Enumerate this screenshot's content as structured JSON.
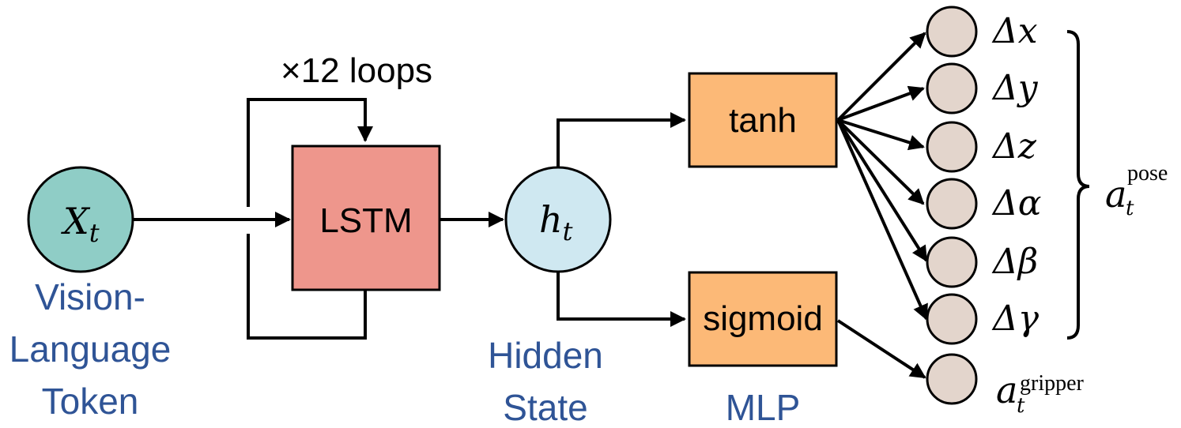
{
  "loop_label": "×12 loops",
  "input": {
    "symbol": "X",
    "subscript": "t",
    "caption_line1": "Vision-",
    "caption_line2": "Language",
    "caption_line3": "Token",
    "fill": "#8fcdc6"
  },
  "lstm": {
    "label": "LSTM",
    "fill": "#ee968c"
  },
  "hidden": {
    "symbol": "h",
    "subscript": "t",
    "caption_line1": "Hidden",
    "caption_line2": "State",
    "fill": "#cfe8f1"
  },
  "mlp": {
    "tanh_label": "tanh",
    "sigmoid_label": "sigmoid",
    "caption": "MLP",
    "fill": "#fcb977"
  },
  "outputs": {
    "node_fill": "#e3d5cc",
    "pose_terms": [
      "Δx",
      "Δy",
      "Δz",
      "Δα",
      "Δβ",
      "Δγ"
    ],
    "pose_symbol": "a",
    "pose_subscript": "t",
    "pose_superscript": "pose",
    "gripper_symbol": "a",
    "gripper_subscript": "t",
    "gripper_superscript": "gripper"
  },
  "colors": {
    "caption_text": "#2f5496",
    "edge": "#000000"
  }
}
